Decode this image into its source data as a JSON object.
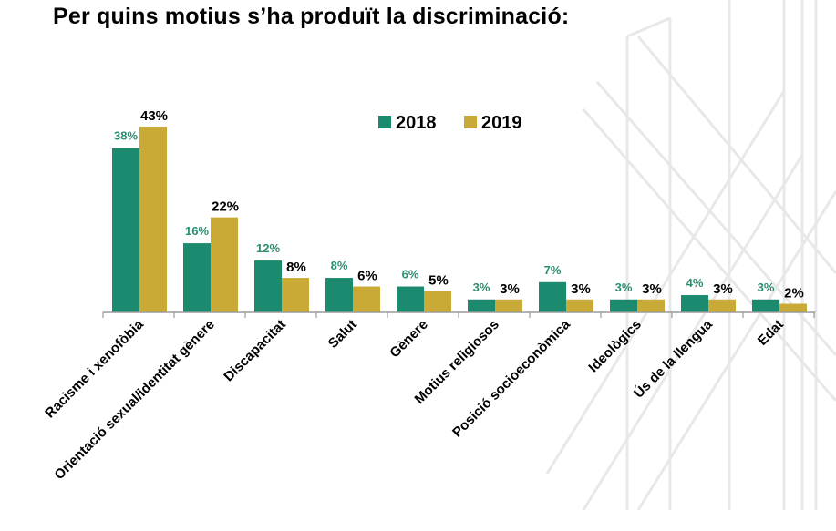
{
  "title": "Per quins motius s’ha produït la discriminació:",
  "colors": {
    "series_2018": "#1c8a6e",
    "series_2019": "#c9aa36",
    "label_2018": "#2a8f72",
    "axis": "#9a9a9a",
    "watermark": "#e6e6e6"
  },
  "chart_data": {
    "type": "bar",
    "title": "Per quins motius s’ha produït la discriminació:",
    "categories": [
      "Racisme i xenofòbia",
      "Orientació sexual/identitat gènere",
      "Discapacitat",
      "Salut",
      "Gènere",
      "Motius religiosos",
      "Posició socioeconòmica",
      "Ideològics",
      "Ús de la llengua",
      "Edat"
    ],
    "series": [
      {
        "name": "2018",
        "values": [
          38,
          16,
          12,
          8,
          6,
          3,
          7,
          3,
          4,
          3
        ],
        "labels": [
          "38%",
          "16%",
          "12%",
          "8%",
          "6%",
          "3%",
          "7%",
          "3%",
          "4%",
          "3%"
        ]
      },
      {
        "name": "2019",
        "values": [
          43,
          22,
          8,
          6,
          5,
          3,
          3,
          3,
          3,
          2
        ],
        "labels": [
          "43%",
          "22%",
          "8%",
          "6%",
          "5%",
          "3%",
          "3%",
          "3%",
          "3%",
          "2%"
        ]
      }
    ],
    "ylim": [
      0,
      45
    ],
    "grid": false,
    "legend": "top-center"
  }
}
